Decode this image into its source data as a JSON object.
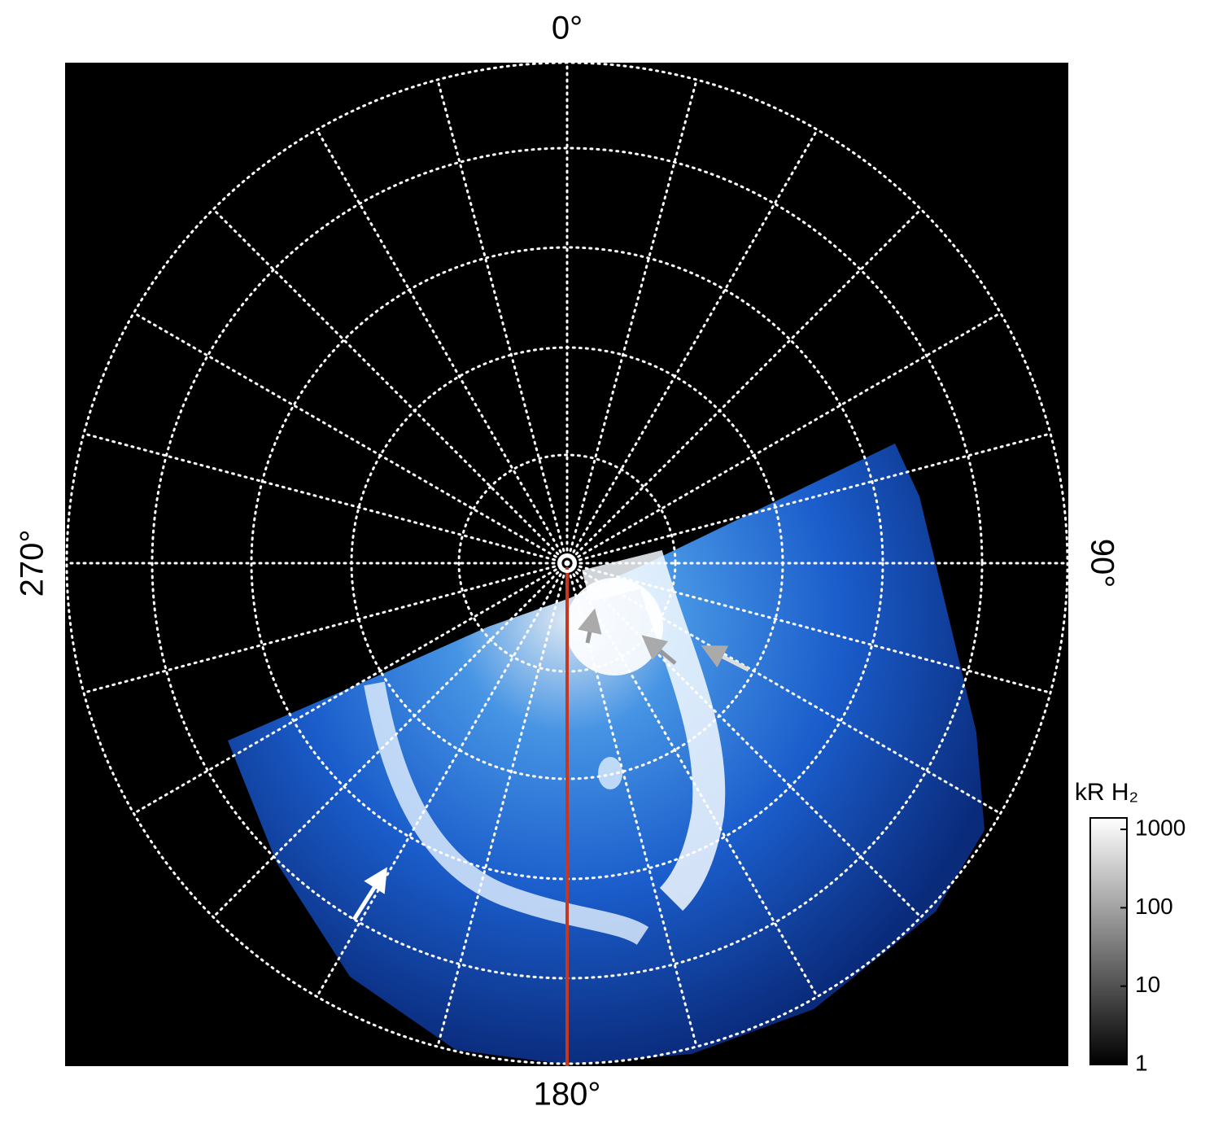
{
  "chart_data": {
    "type": "polar-image",
    "angle_ticks": [
      {
        "value": 0,
        "label": "0°"
      },
      {
        "value": 90,
        "label": "90°"
      },
      {
        "value": 180,
        "label": "180°"
      },
      {
        "value": 270,
        "label": "270°"
      }
    ],
    "colorbar": {
      "label": "kR H₂",
      "log": true,
      "lim": [
        1,
        1400
      ],
      "ticks": [
        1,
        10,
        100,
        1000
      ]
    }
  }
}
